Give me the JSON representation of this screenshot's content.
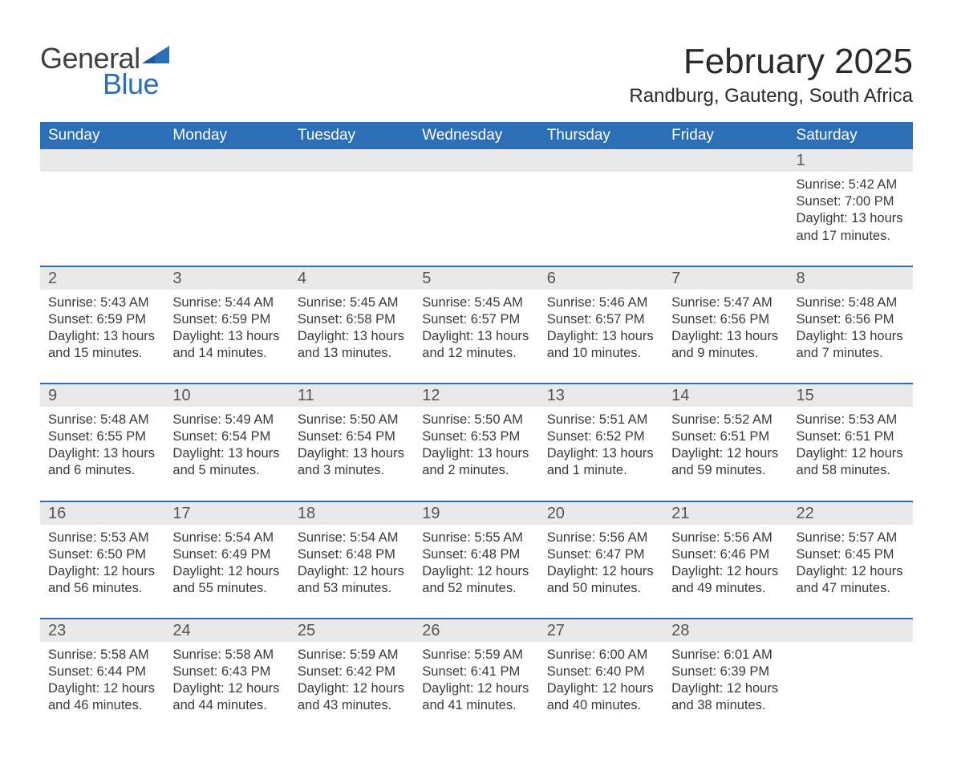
{
  "logo": {
    "text_top": "General",
    "text_bottom": "Blue",
    "color_main": "#404040",
    "color_accent": "#2d6fb6"
  },
  "title": "February 2025",
  "location": "Randburg, Gauteng, South Africa",
  "header_bg": "#2d6fb6",
  "header_fg": "#ffffff",
  "daynum_bg": "#e9e9e9",
  "sep_color": "#2d6fb6",
  "day_names": [
    "Sunday",
    "Monday",
    "Tuesday",
    "Wednesday",
    "Thursday",
    "Friday",
    "Saturday"
  ],
  "weeks": [
    [
      null,
      null,
      null,
      null,
      null,
      null,
      {
        "num": "1",
        "sunrise": "5:42 AM",
        "sunset": "7:00 PM",
        "daylight": "13 hours and 17 minutes."
      }
    ],
    [
      {
        "num": "2",
        "sunrise": "5:43 AM",
        "sunset": "6:59 PM",
        "daylight": "13 hours and 15 minutes."
      },
      {
        "num": "3",
        "sunrise": "5:44 AM",
        "sunset": "6:59 PM",
        "daylight": "13 hours and 14 minutes."
      },
      {
        "num": "4",
        "sunrise": "5:45 AM",
        "sunset": "6:58 PM",
        "daylight": "13 hours and 13 minutes."
      },
      {
        "num": "5",
        "sunrise": "5:45 AM",
        "sunset": "6:57 PM",
        "daylight": "13 hours and 12 minutes."
      },
      {
        "num": "6",
        "sunrise": "5:46 AM",
        "sunset": "6:57 PM",
        "daylight": "13 hours and 10 minutes."
      },
      {
        "num": "7",
        "sunrise": "5:47 AM",
        "sunset": "6:56 PM",
        "daylight": "13 hours and 9 minutes."
      },
      {
        "num": "8",
        "sunrise": "5:48 AM",
        "sunset": "6:56 PM",
        "daylight": "13 hours and 7 minutes."
      }
    ],
    [
      {
        "num": "9",
        "sunrise": "5:48 AM",
        "sunset": "6:55 PM",
        "daylight": "13 hours and 6 minutes."
      },
      {
        "num": "10",
        "sunrise": "5:49 AM",
        "sunset": "6:54 PM",
        "daylight": "13 hours and 5 minutes."
      },
      {
        "num": "11",
        "sunrise": "5:50 AM",
        "sunset": "6:54 PM",
        "daylight": "13 hours and 3 minutes."
      },
      {
        "num": "12",
        "sunrise": "5:50 AM",
        "sunset": "6:53 PM",
        "daylight": "13 hours and 2 minutes."
      },
      {
        "num": "13",
        "sunrise": "5:51 AM",
        "sunset": "6:52 PM",
        "daylight": "13 hours and 1 minute."
      },
      {
        "num": "14",
        "sunrise": "5:52 AM",
        "sunset": "6:51 PM",
        "daylight": "12 hours and 59 minutes."
      },
      {
        "num": "15",
        "sunrise": "5:53 AM",
        "sunset": "6:51 PM",
        "daylight": "12 hours and 58 minutes."
      }
    ],
    [
      {
        "num": "16",
        "sunrise": "5:53 AM",
        "sunset": "6:50 PM",
        "daylight": "12 hours and 56 minutes."
      },
      {
        "num": "17",
        "sunrise": "5:54 AM",
        "sunset": "6:49 PM",
        "daylight": "12 hours and 55 minutes."
      },
      {
        "num": "18",
        "sunrise": "5:54 AM",
        "sunset": "6:48 PM",
        "daylight": "12 hours and 53 minutes."
      },
      {
        "num": "19",
        "sunrise": "5:55 AM",
        "sunset": "6:48 PM",
        "daylight": "12 hours and 52 minutes."
      },
      {
        "num": "20",
        "sunrise": "5:56 AM",
        "sunset": "6:47 PM",
        "daylight": "12 hours and 50 minutes."
      },
      {
        "num": "21",
        "sunrise": "5:56 AM",
        "sunset": "6:46 PM",
        "daylight": "12 hours and 49 minutes."
      },
      {
        "num": "22",
        "sunrise": "5:57 AM",
        "sunset": "6:45 PM",
        "daylight": "12 hours and 47 minutes."
      }
    ],
    [
      {
        "num": "23",
        "sunrise": "5:58 AM",
        "sunset": "6:44 PM",
        "daylight": "12 hours and 46 minutes."
      },
      {
        "num": "24",
        "sunrise": "5:58 AM",
        "sunset": "6:43 PM",
        "daylight": "12 hours and 44 minutes."
      },
      {
        "num": "25",
        "sunrise": "5:59 AM",
        "sunset": "6:42 PM",
        "daylight": "12 hours and 43 minutes."
      },
      {
        "num": "26",
        "sunrise": "5:59 AM",
        "sunset": "6:41 PM",
        "daylight": "12 hours and 41 minutes."
      },
      {
        "num": "27",
        "sunrise": "6:00 AM",
        "sunset": "6:40 PM",
        "daylight": "12 hours and 40 minutes."
      },
      {
        "num": "28",
        "sunrise": "6:01 AM",
        "sunset": "6:39 PM",
        "daylight": "12 hours and 38 minutes."
      },
      null
    ]
  ],
  "labels": {
    "sunrise": "Sunrise: ",
    "sunset": "Sunset: ",
    "daylight": "Daylight: "
  }
}
